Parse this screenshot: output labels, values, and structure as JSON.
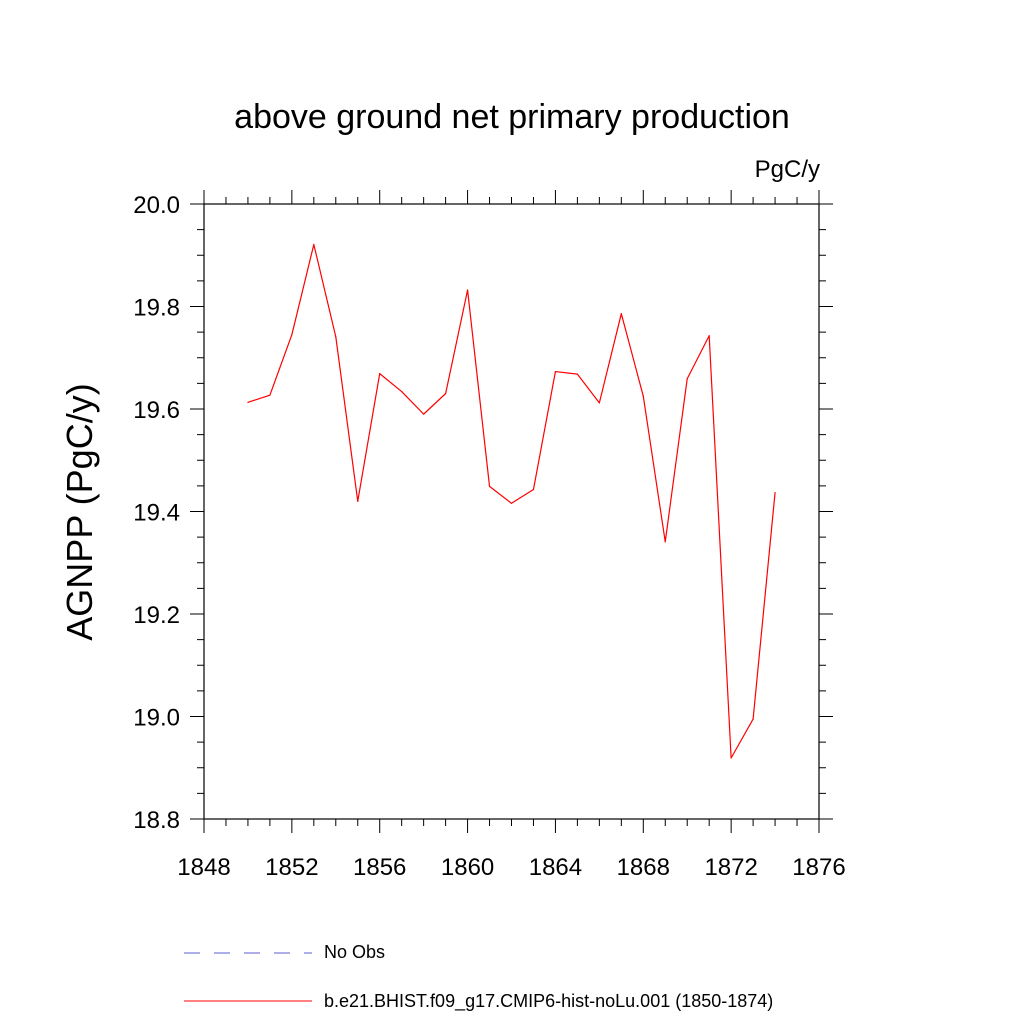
{
  "chart_data": {
    "type": "line",
    "title": "above ground net primary production",
    "units_label": "PgC/y",
    "xlabel": "",
    "ylabel": "AGNPP  (PgC/y)",
    "xlim": [
      1848,
      1876
    ],
    "ylim": [
      18.8,
      20.0
    ],
    "xticks": [
      "1848",
      "1852",
      "1856",
      "1860",
      "1864",
      "1868",
      "1872",
      "1876"
    ],
    "yticks": [
      "18.8",
      "19.0",
      "19.2",
      "19.4",
      "19.6",
      "19.8",
      "20.0"
    ],
    "grid": false,
    "legend_position": "bottom",
    "series": [
      {
        "name": "b.e21.BHIST.f09_g17.CMIP6-hist-noLu.001 (1850-1874)",
        "color": "#ff0000",
        "style": "solid",
        "x": [
          1850,
          1851,
          1852,
          1853,
          1854,
          1855,
          1856,
          1857,
          1858,
          1859,
          1860,
          1861,
          1862,
          1863,
          1864,
          1865,
          1866,
          1867,
          1868,
          1869,
          1870,
          1871,
          1872,
          1873,
          1874
        ],
        "values": [
          19.613,
          19.627,
          19.745,
          19.921,
          19.741,
          19.42,
          19.669,
          19.634,
          19.59,
          19.63,
          19.832,
          19.449,
          19.416,
          19.443,
          19.673,
          19.668,
          19.612,
          19.786,
          19.625,
          19.341,
          19.659,
          19.743,
          18.919,
          18.995,
          19.437
        ]
      }
    ],
    "legend": [
      {
        "label": "No Obs",
        "color": "#5b5bd6",
        "style": "dashed"
      },
      {
        "label": "b.e21.BHIST.f09_g17.CMIP6-hist-noLu.001 (1850-1874)",
        "color": "#ff0000",
        "style": "solid"
      }
    ]
  }
}
